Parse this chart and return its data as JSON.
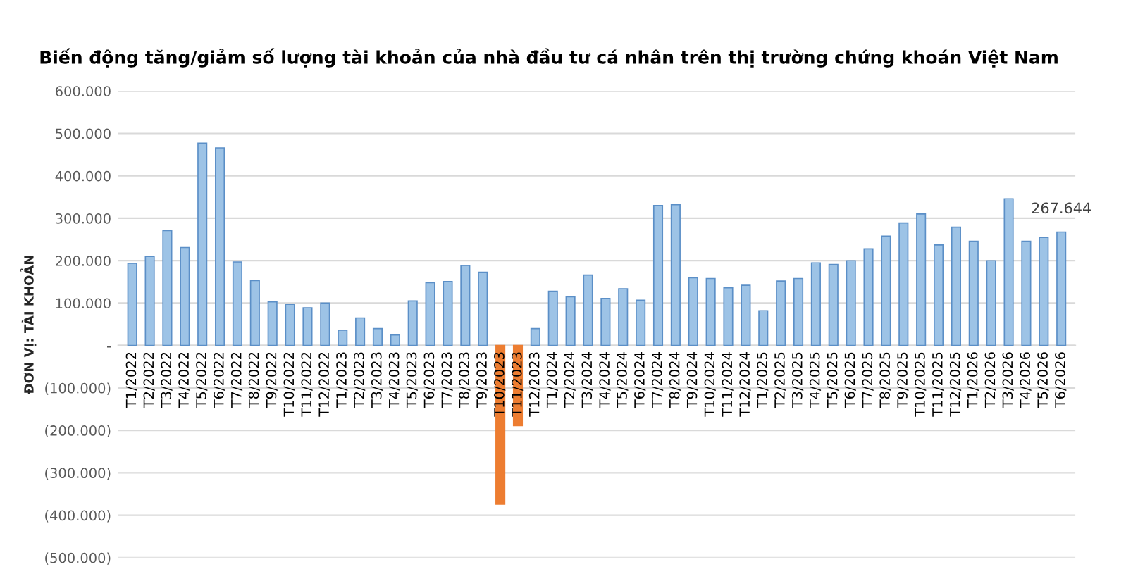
{
  "chart_data": {
    "type": "bar",
    "title": "Biến động tăng/giảm số lượng tài khoản của nhà đầu tư cá nhân trên thị trường chứng khoán Việt Nam",
    "ylabel": "ĐƠN VỊ: TÀI KHOẢN",
    "categories": [
      "T1/2022",
      "T2/2022",
      "T3/2022",
      "T4/2022",
      "T5/2022",
      "T6/2022",
      "T7/2022",
      "T8/2022",
      "T9/2022",
      "T10/2022",
      "T11/2022",
      "T12/2022",
      "T1/2023",
      "T2/2023",
      "T3/2023",
      "T4/2023",
      "T5/2023",
      "T6/2023",
      "T7/2023",
      "T8/2023",
      "T9/2023",
      "T10/2023",
      "T11/2023",
      "T12/2023",
      "T1/2024",
      "T2/2024",
      "T3/2024",
      "T4/2024",
      "T5/2024",
      "T6/2024",
      "T7/2024",
      "T8/2024",
      "T9/2024",
      "T10/2024",
      "T11/2024",
      "T12/2024",
      "T1/2025",
      "T2/2025",
      "T3/2025",
      "T4/2025",
      "T5/2025",
      "T6/2025",
      "T7/2025",
      "T8/2025",
      "T9/2025",
      "T10/2025",
      "T11/2025",
      "T12/2025",
      "T1/2026",
      "T2/2026",
      "T3/2026",
      "T4/2026",
      "T5/2026",
      "T6/2026"
    ],
    "values": [
      194000,
      210000,
      271000,
      231000,
      477000,
      466000,
      197000,
      153000,
      103000,
      97000,
      89000,
      100000,
      36000,
      65000,
      40000,
      25000,
      105000,
      148000,
      151000,
      189000,
      173000,
      -374000,
      -189000,
      40000,
      128000,
      115000,
      166000,
      111000,
      134000,
      107000,
      330000,
      332000,
      160000,
      158000,
      136000,
      142000,
      82000,
      152000,
      158000,
      195000,
      191000,
      200000,
      228000,
      258000,
      289000,
      310000,
      237000,
      279000,
      246000,
      200000,
      346000,
      246000,
      255000,
      267644
    ],
    "colors": [
      "#9dc3e6",
      "#9dc3e6",
      "#9dc3e6",
      "#9dc3e6",
      "#9dc3e6",
      "#9dc3e6",
      "#9dc3e6",
      "#9dc3e6",
      "#9dc3e6",
      "#9dc3e6",
      "#9dc3e6",
      "#9dc3e6",
      "#9dc3e6",
      "#9dc3e6",
      "#9dc3e6",
      "#9dc3e6",
      "#9dc3e6",
      "#9dc3e6",
      "#9dc3e6",
      "#9dc3e6",
      "#9dc3e6",
      "#ed7d31",
      "#ed7d31",
      "#9dc3e6",
      "#9dc3e6",
      "#9dc3e6",
      "#9dc3e6",
      "#9dc3e6",
      "#9dc3e6",
      "#9dc3e6",
      "#9dc3e6",
      "#9dc3e6",
      "#9dc3e6",
      "#9dc3e6",
      "#9dc3e6",
      "#9dc3e6",
      "#9dc3e6",
      "#9dc3e6",
      "#9dc3e6",
      "#9dc3e6",
      "#9dc3e6",
      "#9dc3e6",
      "#9dc3e6",
      "#9dc3e6",
      "#9dc3e6",
      "#9dc3e6",
      "#9dc3e6",
      "#9dc3e6",
      "#9dc3e6",
      "#9dc3e6",
      "#9dc3e6",
      "#9dc3e6",
      "#9dc3e6",
      "#9dc3e6"
    ],
    "value_labels": [
      null,
      null,
      null,
      null,
      null,
      null,
      null,
      null,
      null,
      null,
      null,
      null,
      null,
      null,
      null,
      null,
      null,
      null,
      null,
      null,
      null,
      null,
      null,
      null,
      null,
      null,
      null,
      null,
      null,
      null,
      null,
      null,
      null,
      null,
      null,
      null,
      null,
      null,
      null,
      null,
      null,
      null,
      null,
      null,
      null,
      null,
      null,
      null,
      null,
      null,
      null,
      null,
      null,
      "267.644"
    ],
    "ylim": [
      -500000,
      600000
    ],
    "yticks": [
      {
        "value": -500000,
        "label": "(500.000)"
      },
      {
        "value": -400000,
        "label": "(400.000)"
      },
      {
        "value": -300000,
        "label": "(300.000)"
      },
      {
        "value": -200000,
        "label": "(200.000)"
      },
      {
        "value": -100000,
        "label": "(100.000)"
      },
      {
        "value": 0,
        "label": "-"
      },
      {
        "value": 100000,
        "label": "100.000"
      },
      {
        "value": 200000,
        "label": "200.000"
      },
      {
        "value": 300000,
        "label": "300.000"
      },
      {
        "value": 400000,
        "label": "400.000"
      },
      {
        "value": 500000,
        "label": "500.000"
      },
      {
        "value": 600000,
        "label": "600.000"
      }
    ],
    "grid": "y"
  }
}
